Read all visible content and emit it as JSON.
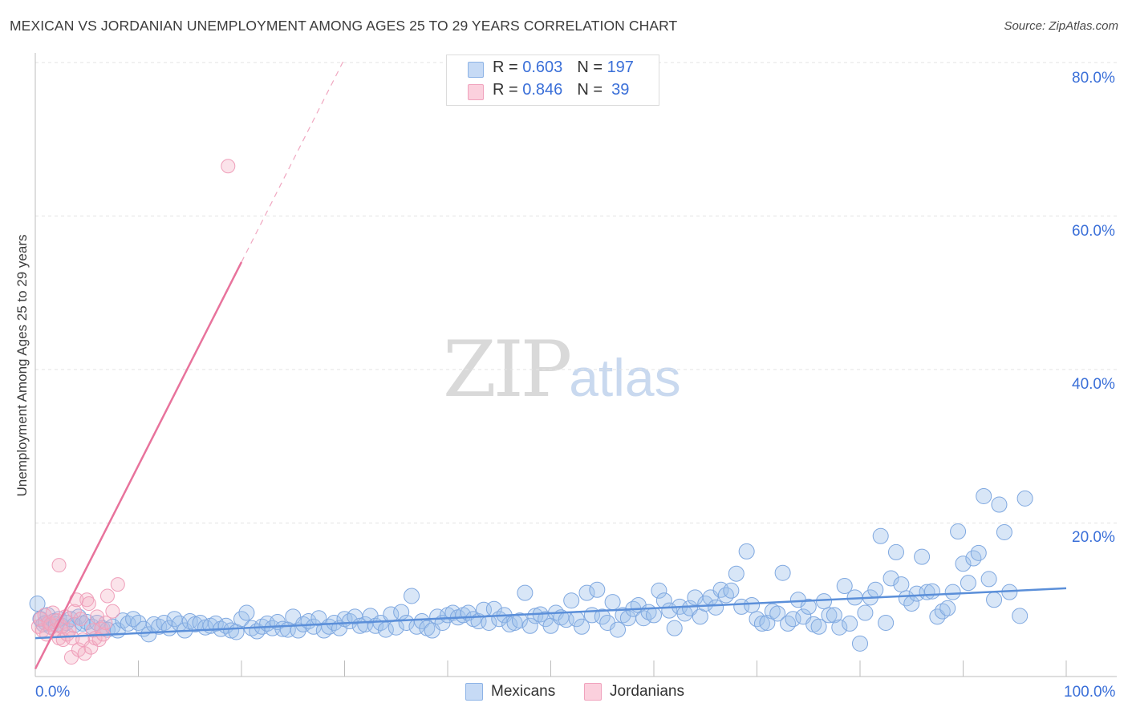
{
  "title": "MEXICAN VS JORDANIAN UNEMPLOYMENT AMONG AGES 25 TO 29 YEARS CORRELATION CHART",
  "source": "Source: ZipAtlas.com",
  "watermark": {
    "zip": "ZIP",
    "atlas": "atlas"
  },
  "stats": [
    {
      "r_label": "R = ",
      "r": "0.603",
      "n_label": "N = ",
      "n": "197",
      "color": "#9ec0ec"
    },
    {
      "r_label": "R = ",
      "r": "0.846",
      "n_label": "N = ",
      "n": " 39",
      "color": "#f4aec4"
    }
  ],
  "legend": [
    {
      "label": "Mexicans",
      "color": "#9ec0ec"
    },
    {
      "label": "Jordanians",
      "color": "#f4aec4"
    }
  ],
  "chart_data": {
    "type": "scatter",
    "title": "MEXICAN VS JORDANIAN UNEMPLOYMENT AMONG AGES 25 TO 29 YEARS CORRELATION CHART",
    "ylabel": "Unemployment Among Ages 25 to 29 years",
    "xlabel": "",
    "xlim": [
      0,
      100
    ],
    "ylim": [
      0,
      80
    ],
    "x_ticks": [
      "0.0%",
      "100.0%"
    ],
    "y_ticks": [
      "20.0%",
      "40.0%",
      "60.0%",
      "80.0%"
    ],
    "y_tick_values": [
      20,
      40,
      60,
      80
    ],
    "grid": true,
    "legend_position": "bottom",
    "series": [
      {
        "name": "Mexicans",
        "color": "#5b8fd9",
        "trend": {
          "x0": 0,
          "y0": 5.0,
          "x1": 100,
          "y1": 11.5
        },
        "points": [
          [
            0.2,
            9.5
          ],
          [
            0.5,
            7.5
          ],
          [
            0.8,
            6.8
          ],
          [
            1.0,
            7.0
          ],
          [
            1.2,
            8.0
          ],
          [
            1.5,
            6.5
          ],
          [
            1.8,
            7.2
          ],
          [
            2.0,
            6.8
          ],
          [
            2.3,
            7.5
          ],
          [
            2.6,
            6.6
          ],
          [
            3.0,
            7.0
          ],
          [
            3.4,
            7.5
          ],
          [
            3.8,
            6.7
          ],
          [
            4.2,
            7.8
          ],
          [
            4.6,
            6.9
          ],
          [
            5.0,
            7.1
          ],
          [
            5.5,
            6.5
          ],
          [
            6.0,
            7.0
          ],
          [
            6.5,
            6.3
          ],
          [
            7.0,
            6.1
          ],
          [
            7.5,
            6.5
          ],
          [
            8.0,
            6.0
          ],
          [
            8.5,
            7.3
          ],
          [
            9.0,
            6.9
          ],
          [
            9.5,
            7.5
          ],
          [
            10.0,
            7.0
          ],
          [
            10.5,
            6.2
          ],
          [
            11.0,
            5.5
          ],
          [
            11.5,
            6.8
          ],
          [
            12.0,
            6.5
          ],
          [
            12.5,
            7.0
          ],
          [
            13.0,
            6.3
          ],
          [
            13.5,
            7.5
          ],
          [
            14.0,
            6.9
          ],
          [
            14.5,
            6.0
          ],
          [
            15.0,
            7.2
          ],
          [
            15.5,
            6.8
          ],
          [
            16.0,
            7.0
          ],
          [
            16.5,
            6.4
          ],
          [
            17.0,
            6.6
          ],
          [
            17.5,
            6.9
          ],
          [
            18.0,
            6.2
          ],
          [
            18.5,
            6.6
          ],
          [
            19.0,
            6.0
          ],
          [
            19.5,
            5.8
          ],
          [
            20.0,
            7.5
          ],
          [
            20.5,
            8.3
          ],
          [
            21.0,
            6.3
          ],
          [
            21.5,
            5.9
          ],
          [
            22.0,
            6.5
          ],
          [
            22.5,
            6.9
          ],
          [
            23.0,
            6.3
          ],
          [
            23.5,
            7.1
          ],
          [
            24.0,
            6.2
          ],
          [
            24.5,
            6.1
          ],
          [
            25.0,
            7.8
          ],
          [
            25.5,
            6.0
          ],
          [
            26.0,
            6.8
          ],
          [
            26.5,
            7.2
          ],
          [
            27.0,
            6.5
          ],
          [
            27.5,
            7.6
          ],
          [
            28.0,
            6.0
          ],
          [
            28.5,
            6.5
          ],
          [
            29.0,
            7.0
          ],
          [
            29.5,
            6.3
          ],
          [
            30.0,
            7.5
          ],
          [
            30.5,
            7.2
          ],
          [
            31.0,
            7.8
          ],
          [
            31.5,
            6.6
          ],
          [
            32.0,
            6.8
          ],
          [
            32.5,
            7.9
          ],
          [
            33.0,
            6.6
          ],
          [
            33.5,
            7.0
          ],
          [
            34.0,
            6.1
          ],
          [
            34.5,
            8.1
          ],
          [
            35.0,
            6.4
          ],
          [
            35.5,
            8.4
          ],
          [
            36.0,
            7.0
          ],
          [
            36.5,
            10.5
          ],
          [
            37.0,
            6.5
          ],
          [
            37.5,
            7.2
          ],
          [
            38.0,
            6.3
          ],
          [
            38.5,
            6.0
          ],
          [
            39.0,
            7.8
          ],
          [
            39.5,
            7.0
          ],
          [
            40.0,
            8.0
          ],
          [
            40.5,
            8.3
          ],
          [
            41.0,
            7.7
          ],
          [
            41.5,
            8.0
          ],
          [
            42.0,
            8.3
          ],
          [
            42.5,
            7.5
          ],
          [
            43.0,
            7.2
          ],
          [
            43.5,
            8.7
          ],
          [
            44.0,
            7.0
          ],
          [
            44.5,
            8.8
          ],
          [
            45.0,
            7.5
          ],
          [
            45.5,
            8.0
          ],
          [
            46.0,
            6.8
          ],
          [
            46.5,
            7.0
          ],
          [
            47.0,
            7.3
          ],
          [
            47.5,
            10.9
          ],
          [
            48.0,
            6.6
          ],
          [
            48.5,
            7.9
          ],
          [
            49.0,
            8.1
          ],
          [
            49.5,
            7.5
          ],
          [
            50.0,
            6.6
          ],
          [
            50.5,
            8.3
          ],
          [
            51.0,
            7.7
          ],
          [
            51.5,
            7.4
          ],
          [
            52.0,
            9.9
          ],
          [
            52.5,
            7.5
          ],
          [
            53.0,
            6.5
          ],
          [
            53.5,
            10.9
          ],
          [
            54.0,
            8.0
          ],
          [
            54.5,
            11.3
          ],
          [
            55.0,
            7.8
          ],
          [
            55.5,
            7.0
          ],
          [
            56.0,
            9.7
          ],
          [
            56.5,
            6.1
          ],
          [
            57.0,
            8.0
          ],
          [
            57.5,
            7.6
          ],
          [
            58.0,
            8.8
          ],
          [
            58.5,
            9.3
          ],
          [
            59.0,
            7.6
          ],
          [
            59.5,
            8.4
          ],
          [
            60.0,
            8.0
          ],
          [
            60.5,
            11.2
          ],
          [
            61.0,
            9.9
          ],
          [
            61.5,
            8.6
          ],
          [
            62.0,
            6.3
          ],
          [
            62.5,
            9.1
          ],
          [
            63.0,
            8.2
          ],
          [
            63.5,
            8.9
          ],
          [
            64.0,
            10.3
          ],
          [
            64.5,
            7.8
          ],
          [
            65.0,
            9.5
          ],
          [
            65.5,
            10.3
          ],
          [
            66.0,
            9.0
          ],
          [
            66.5,
            11.3
          ],
          [
            67.0,
            10.6
          ],
          [
            67.5,
            11.2
          ],
          [
            68.0,
            13.4
          ],
          [
            68.5,
            9.1
          ],
          [
            69.0,
            16.3
          ],
          [
            69.5,
            9.3
          ],
          [
            70.0,
            7.5
          ],
          [
            70.5,
            6.9
          ],
          [
            71.0,
            7.0
          ],
          [
            71.5,
            8.5
          ],
          [
            72.0,
            8.2
          ],
          [
            72.5,
            13.5
          ],
          [
            73.0,
            6.9
          ],
          [
            73.5,
            7.5
          ],
          [
            74.0,
            10.0
          ],
          [
            74.5,
            7.8
          ],
          [
            75.0,
            9.1
          ],
          [
            75.5,
            6.8
          ],
          [
            76.0,
            6.5
          ],
          [
            76.5,
            9.8
          ],
          [
            77.0,
            8.0
          ],
          [
            77.5,
            8.0
          ],
          [
            78.0,
            6.4
          ],
          [
            78.5,
            11.8
          ],
          [
            79.0,
            6.9
          ],
          [
            79.5,
            10.3
          ],
          [
            80.0,
            4.3
          ],
          [
            80.5,
            8.3
          ],
          [
            81.0,
            10.3
          ],
          [
            81.5,
            11.3
          ],
          [
            82.0,
            18.3
          ],
          [
            82.5,
            7.0
          ],
          [
            83.0,
            12.8
          ],
          [
            83.5,
            16.2
          ],
          [
            84.0,
            12.0
          ],
          [
            84.5,
            10.2
          ],
          [
            85.0,
            9.5
          ],
          [
            85.5,
            10.8
          ],
          [
            86.0,
            15.6
          ],
          [
            86.5,
            11.0
          ],
          [
            87.0,
            11.1
          ],
          [
            87.5,
            7.8
          ],
          [
            88.0,
            8.5
          ],
          [
            88.5,
            8.9
          ],
          [
            89.0,
            11.0
          ],
          [
            89.5,
            18.9
          ],
          [
            90.0,
            14.7
          ],
          [
            90.5,
            12.2
          ],
          [
            91.0,
            15.4
          ],
          [
            91.5,
            16.1
          ],
          [
            92.0,
            23.5
          ],
          [
            92.5,
            12.7
          ],
          [
            93.0,
            10.0
          ],
          [
            93.5,
            22.4
          ],
          [
            94.0,
            18.8
          ],
          [
            94.5,
            11.0
          ],
          [
            95.5,
            7.9
          ],
          [
            96.0,
            23.2
          ]
        ]
      },
      {
        "name": "Jordanians",
        "color": "#e8739c",
        "trend": {
          "x0": 0,
          "y0": 1.0,
          "x1": 20,
          "y1": 54.0
        },
        "trend_dashed": {
          "x0": 20,
          "y0": 54.0,
          "x1": 30,
          "y1": 80.5
        },
        "points": [
          [
            0.3,
            6.5
          ],
          [
            0.5,
            7.5
          ],
          [
            0.7,
            6.0
          ],
          [
            0.9,
            8.0
          ],
          [
            1.1,
            5.5
          ],
          [
            1.3,
            7.0
          ],
          [
            1.5,
            6.8
          ],
          [
            1.7,
            8.3
          ],
          [
            1.9,
            6.0
          ],
          [
            2.1,
            7.3
          ],
          [
            2.3,
            5.0
          ],
          [
            2.5,
            6.5
          ],
          [
            2.7,
            4.8
          ],
          [
            2.9,
            7.8
          ],
          [
            3.1,
            5.5
          ],
          [
            3.3,
            6.0
          ],
          [
            3.5,
            2.5
          ],
          [
            3.6,
            5.0
          ],
          [
            3.8,
            8.5
          ],
          [
            4.0,
            10.0
          ],
          [
            4.2,
            3.5
          ],
          [
            4.4,
            7.5
          ],
          [
            4.6,
            4.8
          ],
          [
            4.8,
            3.0
          ],
          [
            5.0,
            10.0
          ],
          [
            5.2,
            9.5
          ],
          [
            5.4,
            3.8
          ],
          [
            5.6,
            6.0
          ],
          [
            5.8,
            5.0
          ],
          [
            6.0,
            7.8
          ],
          [
            6.2,
            4.8
          ],
          [
            6.4,
            6.2
          ],
          [
            6.6,
            5.5
          ],
          [
            6.8,
            7.0
          ],
          [
            7.0,
            10.5
          ],
          [
            7.5,
            8.5
          ],
          [
            8.0,
            12.0
          ],
          [
            2.3,
            14.5
          ],
          [
            18.7,
            66.5
          ]
        ]
      }
    ]
  }
}
